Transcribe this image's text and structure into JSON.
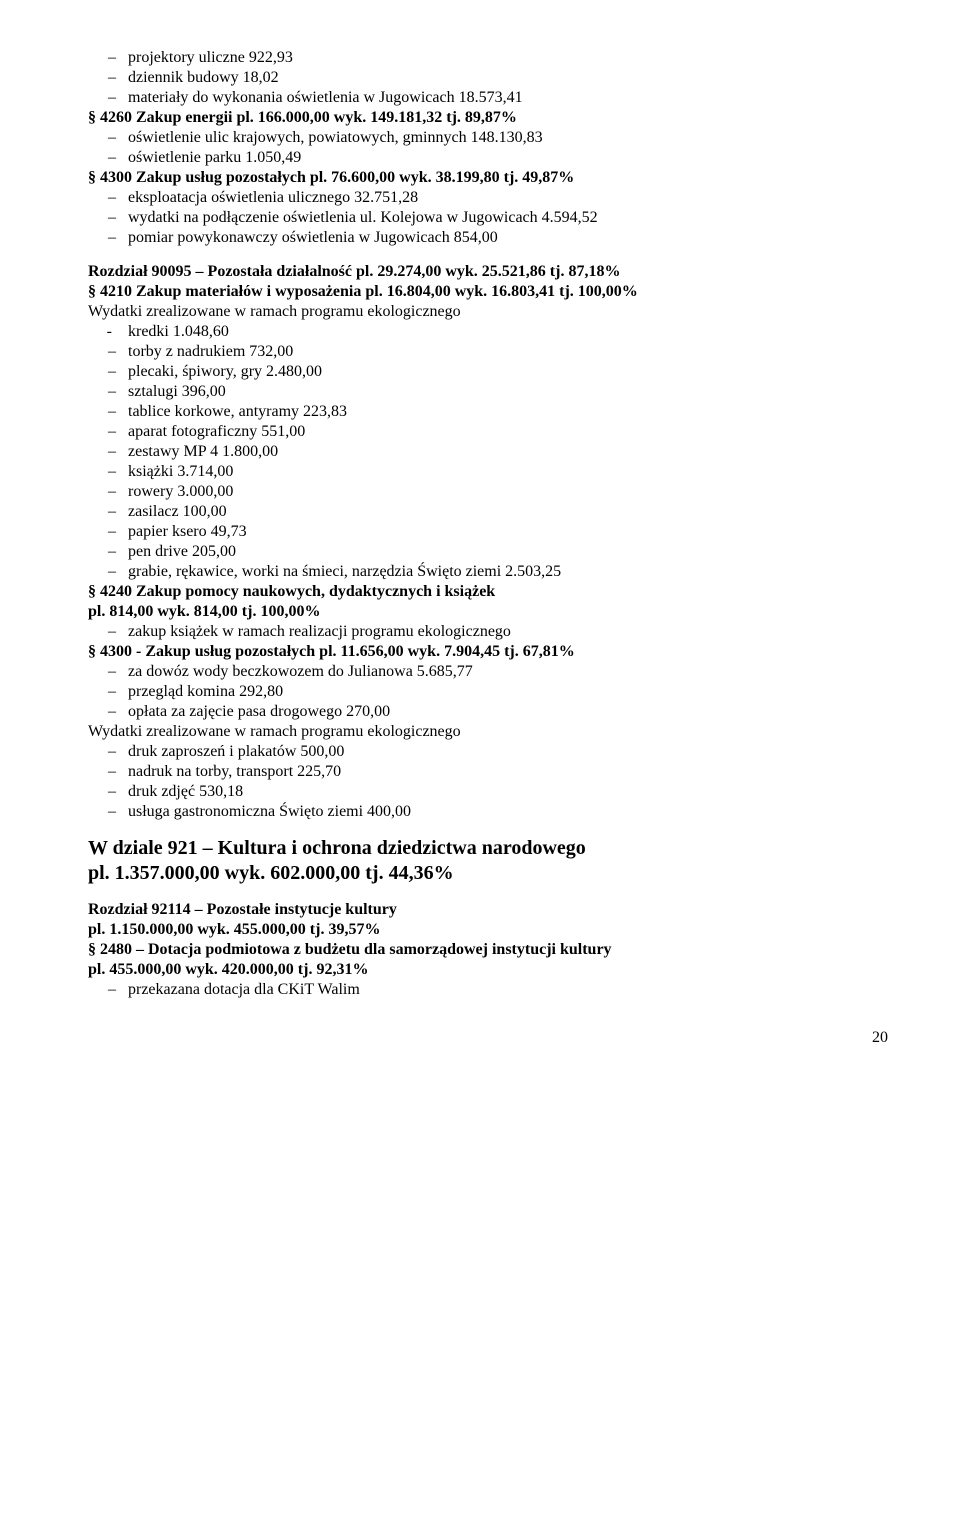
{
  "block1": {
    "items": [
      "projektory uliczne   922,93",
      "dziennik budowy   18,02",
      "materiały do wykonania oświetlenia w Jugowicach   18.573,41"
    ],
    "par4260": "§ 4260 Zakup energii  pl.   166.000,00  wyk.  149.181,32  tj.   89,87%",
    "items2": [
      "oświetlenie ulic krajowych, powiatowych, gminnych   148.130,83",
      "oświetlenie parku   1.050,49"
    ],
    "par4300": "§ 4300  Zakup usług  pozostałych  pl.   76.600,00  wyk.  38.199,80  tj.  49,87%",
    "items3": [
      "eksploatacja oświetlenia ulicznego  32.751,28",
      "wydatki na podłączenie oświetlenia ul. Kolejowa w Jugowicach  4.594,52",
      "pomiar powykonawczy oświetlenia w Jugowicach     854,00"
    ]
  },
  "block2": {
    "heading": "Rozdział  90095 – Pozostała działalność    pl.  29.274,00  wyk.  25.521,86  tj.  87,18%",
    "par4210": "§ 4210 Zakup materiałów i wyposażenia pl.  16.804,00  wyk.  16.803,41 tj.  100,00%",
    "eco1": "Wydatki zrealizowane w ramach programu ekologicznego",
    "dashItems": [
      "kredki   1.048,60"
    ],
    "items": [
      "torby z nadrukiem    732,00",
      "plecaki, śpiwory, gry     2.480,00",
      "sztalugi   396,00",
      "tablice korkowe, antyramy    223,83",
      "aparat fotograficzny     551,00",
      "zestawy MP 4     1.800,00",
      "książki   3.714,00",
      "rowery    3.000,00",
      "zasilacz   100,00",
      "papier ksero    49,73",
      "pen drive    205,00",
      "grabie, rękawice, worki na śmieci, narzędzia Święto ziemi   2.503,25"
    ],
    "par4240a": "§ 4240  Zakup pomocy naukowych, dydaktycznych i książek",
    "par4240b": "pl.   814,00  wyk.   814,00  tj.   100,00%",
    "items4240": [
      "zakup książek w ramach realizacji programu ekologicznego"
    ],
    "par4300": "§ 4300 -  Zakup  usług  pozostałych pl.   11.656,00   wyk.    7.904,45   tj.  67,81%",
    "items4300a": [
      "za dowóz wody beczkowozem do Julianowa   5.685,77",
      "przegląd komina    292,80",
      "opłata za zajęcie pasa drogowego  270,00"
    ],
    "eco2": "Wydatki zrealizowane w ramach programu ekologicznego",
    "items4300b": [
      "druk zaproszeń i plakatów  500,00",
      "nadruk na torby, transport    225,70",
      "druk zdjęć   530,18",
      "usługa gastronomiczna Święto ziemi  400,00"
    ]
  },
  "block3": {
    "big1": "W dziale 921 – Kultura i ochrona dziedzictwa narodowego",
    "big2": "pl.   1.357.000,00  wyk.   602.000,00   tj.  44,36%",
    "subheading1": "Rozdział   92114 – Pozostałe instytucje kultury",
    "subheading2": "pl.  1.150.000,00  wyk.  455.000,00  tj.  39,57%",
    "par2480a": "§ 2480 – Dotacja podmiotowa z budżetu dla  samorządowej instytucji kultury",
    "par2480b": "pl.   455.000,00   wyk.   420.000,00   tj.   92,31%",
    "items": [
      "przekazana dotacja dla  CKiT Walim"
    ]
  },
  "pageNum": "20"
}
